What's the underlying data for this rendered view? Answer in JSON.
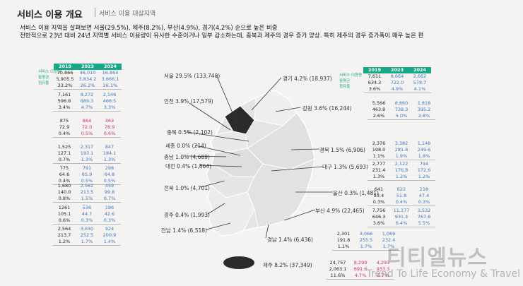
{
  "header": {
    "title": "서비스 이용 개요",
    "subtitle": "서비스 이용 대상지역"
  },
  "summary": [
    "서비스 이용 지역을 살펴보면 서울(29.5%), 제주(8.2%), 부산(4.9%), 경기(4.2%) 순으로 높은 비중",
    "전반적으로 23년 대비 24년 지역별 서비스 이용량이 유사한 수준이거나 일부 감소하는데, 충북과 제주의 경우 증가 양상. 특히 제주의 경우 증가폭이 매우 높은 편"
  ],
  "years": [
    "2019",
    "2023",
    "2024"
  ],
  "row_labels": [
    "서비스 이용량",
    "월평균",
    "점유율"
  ],
  "colors": {
    "accent": "#17a889",
    "blue": "#3b78c2",
    "pink": "#d2287a"
  },
  "regions": [
    {
      "name": "서울",
      "label": "서울 29.5% (133,740)"
    },
    {
      "name": "경기",
      "label": "경기 4.2% (18,937)"
    },
    {
      "name": "인천",
      "label": "인천 3.9% (17,579)"
    },
    {
      "name": "강원",
      "label": "강원 3.6% (16,244)"
    },
    {
      "name": "충북",
      "label": "충북 0.5% (2,102)"
    },
    {
      "name": "세종",
      "label": "세종 0.0% (214)"
    },
    {
      "name": "충남",
      "label": "충남 1.0% (4,689)"
    },
    {
      "name": "대전",
      "label": "대전 0.4% (1,864)"
    },
    {
      "name": "경북",
      "label": "경북 1.5% (6,906)"
    },
    {
      "name": "대구",
      "label": "대구 1.3% (5,693)"
    },
    {
      "name": "전북",
      "label": "전북 1.0% (4,701)"
    },
    {
      "name": "울산",
      "label": "울산 0.3% (1,481)"
    },
    {
      "name": "부산",
      "label": "부산 4.9% (22,465)"
    },
    {
      "name": "광주",
      "label": "광주 0.4% (1,993)"
    },
    {
      "name": "전남",
      "label": "전남 1.4% (6,518)"
    },
    {
      "name": "경남",
      "label": "경남 1.4% (6,436)"
    },
    {
      "name": "제주",
      "label": "제주 8.2% (37,349)"
    }
  ],
  "tables": [
    {
      "region": "서울",
      "rows": [
        [
          "70,866",
          "46,010",
          "16,864"
        ],
        [
          "5,905.5",
          "3,834.2",
          "3,666.1"
        ],
        [
          "33.2%",
          "26.2%",
          "26.1%"
        ]
      ],
      "hl": [
        "",
        "blue",
        "blue"
      ]
    },
    {
      "region": "인천",
      "rows": [
        [
          "7,161",
          "8,272",
          "2,146"
        ],
        [
          "596.8",
          "689.3",
          "466.5"
        ],
        [
          "3.4%",
          "4.7%",
          "3.3%"
        ]
      ],
      "hl": [
        "",
        "blue",
        "blue"
      ]
    },
    {
      "region": "충북",
      "rows": [
        [
          "875",
          "864",
          "363"
        ],
        [
          "72.9",
          "72.0",
          "78.9"
        ],
        [
          "0.4%",
          "0.5%",
          "0.6%"
        ]
      ],
      "hl": [
        "",
        "pink",
        "pink"
      ]
    },
    {
      "region": "세종",
      "rows": [
        [
          "1,525",
          "2,317",
          "847"
        ],
        [
          "127.1",
          "193.1",
          "184.1"
        ],
        [
          "0.7%",
          "1.3%",
          "1.3%"
        ]
      ],
      "hl": [
        "",
        "blue",
        "blue"
      ]
    },
    {
      "region": "대전",
      "rows": [
        [
          "775",
          "791",
          "298"
        ],
        [
          "64.6",
          "65.9",
          "64.8"
        ],
        [
          "0.4%",
          "0.5%",
          "0.5%"
        ]
      ],
      "hl": [
        "",
        "blue",
        "blue"
      ]
    },
    {
      "region": "전북",
      "rows": [
        [
          "1,680",
          "2,562",
          "459"
        ],
        [
          "140.0",
          "213.5",
          "99.8"
        ],
        [
          "0.8%",
          "1.5%",
          "0.7%"
        ]
      ],
      "hl": [
        "",
        "blue",
        "blue"
      ]
    },
    {
      "region": "광주",
      "rows": [
        [
          "1261",
          "536",
          "196"
        ],
        [
          "105.1",
          "44.7",
          "42.6"
        ],
        [
          "0.6%",
          "0.3%",
          "0.3%"
        ]
      ],
      "hl": [
        "",
        "blue",
        "blue"
      ]
    },
    {
      "region": "전남",
      "rows": [
        [
          "2,564",
          "3,030",
          "924"
        ],
        [
          "213.7",
          "252.5",
          "200.9"
        ],
        [
          "1.2%",
          "1.7%",
          "1.4%"
        ]
      ],
      "hl": [
        "",
        "blue",
        "blue"
      ]
    },
    {
      "region": "경기",
      "rows": [
        [
          "7,611",
          "8,664",
          "2,662"
        ],
        [
          "634.3",
          "722.0",
          "578.7"
        ],
        [
          "3.6%",
          "4.9%",
          "4.1%"
        ]
      ],
      "hl": [
        "",
        "blue",
        "blue"
      ]
    },
    {
      "region": "강원",
      "rows": [
        [
          "5,566",
          "8,860",
          "1,818"
        ],
        [
          "463.8",
          "738.3",
          "395.2"
        ],
        [
          "2.6%",
          "5.0%",
          "2.8%"
        ]
      ],
      "hl": [
        "",
        "blue",
        "blue"
      ]
    },
    {
      "region": "경북",
      "rows": [
        [
          "2,376",
          "3,382",
          "1,148"
        ],
        [
          "198.0",
          "281.8",
          "249.6"
        ],
        [
          "1.1%",
          "1.9%",
          "1.8%"
        ]
      ],
      "hl": [
        "",
        "blue",
        "blue"
      ]
    },
    {
      "region": "대구",
      "rows": [
        [
          "2,777",
          "2,122",
          "794"
        ],
        [
          "231.4",
          "176.8",
          "172.6"
        ],
        [
          "1.3%",
          "1.2%",
          "1.2%"
        ]
      ],
      "hl": [
        "",
        "blue",
        "blue"
      ]
    },
    {
      "region": "울산",
      "rows": [
        [
          "641",
          "622",
          "218"
        ],
        [
          "53.4",
          "51.8",
          "47.4"
        ],
        [
          "0.3%",
          "0.4%",
          "0.3%"
        ]
      ],
      "hl": [
        "",
        "blue",
        "blue"
      ]
    },
    {
      "region": "부산",
      "rows": [
        [
          "7,756",
          "11,177",
          "3,532"
        ],
        [
          "646.3",
          "931.4",
          "767.8"
        ],
        [
          "3.6%",
          "6.4%",
          "5.5%"
        ]
      ],
      "hl": [
        "",
        "blue",
        "blue"
      ]
    },
    {
      "region": "경남",
      "rows": [
        [
          "2,301",
          "3,066",
          "1,069"
        ],
        [
          "191.8",
          "255.5",
          "232.4"
        ],
        [
          "1.1%",
          "1.7%",
          "1.7%"
        ]
      ],
      "hl": [
        "",
        "blue",
        "blue"
      ]
    },
    {
      "region": "제주",
      "rows": [
        [
          "24,757",
          "8,299",
          "4,293"
        ],
        [
          "2,063.1",
          "691.6",
          "933.3"
        ],
        [
          "11.6%",
          "4.7%",
          "6.7%"
        ]
      ],
      "hl": [
        "",
        "pink",
        "pink"
      ]
    }
  ],
  "watermark": {
    "brand": "티티엘뉴스",
    "tagline": "Trend To Life Economy & Travel"
  }
}
